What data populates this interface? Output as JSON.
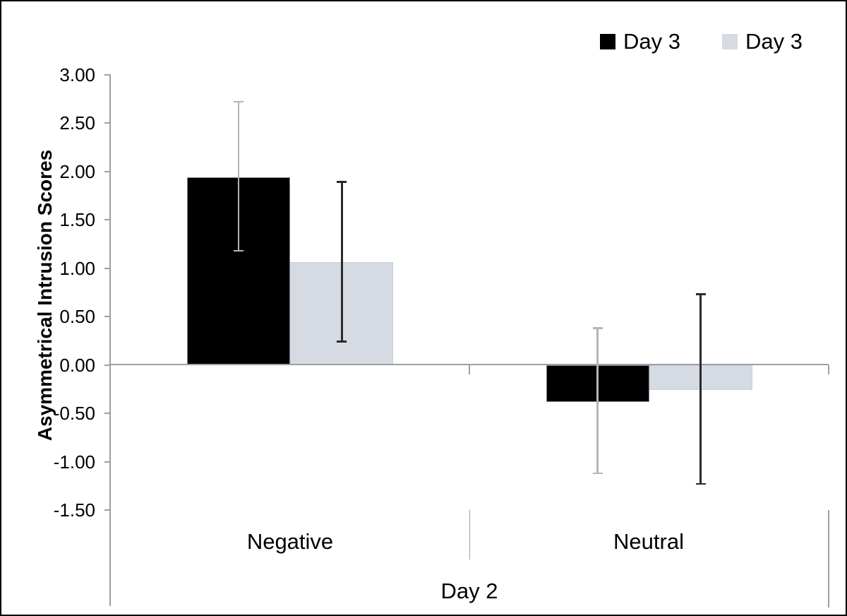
{
  "chart_data": {
    "type": "bar",
    "title": "",
    "ylabel": "Asymmetrical Intrusion Scores",
    "xlabel_group": "Day 2",
    "categories": [
      "Negative",
      "Neutral"
    ],
    "series": [
      {
        "name": "Day 3",
        "color": "#000000",
        "border_color": "#7f858c",
        "error_color": "#b5b5b5",
        "values": [
          1.94,
          -0.38
        ],
        "error_low": [
          1.18,
          -1.12
        ],
        "error_high": [
          2.72,
          0.38
        ]
      },
      {
        "name": "Day 3",
        "color": "#d6dbe3",
        "border_color": "#c9ced8",
        "error_color": "#2a2a2a",
        "values": [
          1.06,
          -0.26
        ],
        "error_low": [
          0.24,
          -1.23
        ],
        "error_high": [
          1.89,
          0.73
        ]
      }
    ],
    "y_ticks": [
      {
        "label": "3.00",
        "value": 3.0
      },
      {
        "label": "2.50",
        "value": 2.5
      },
      {
        "label": "2.00",
        "value": 2.0
      },
      {
        "label": "1.50",
        "value": 1.5
      },
      {
        "label": "1.00",
        "value": 1.0
      },
      {
        "label": "0.50",
        "value": 0.5
      },
      {
        "label": "0.00",
        "value": 0.0
      },
      {
        "label": "-0.50",
        "value": -0.5
      },
      {
        "label": "-1.00",
        "value": -1.0
      },
      {
        "label": "-1.50",
        "value": -1.5
      }
    ],
    "ylim": [
      -1.5,
      3.0
    ],
    "grid": false,
    "legend_position": "top-right",
    "axis_color": "#9aa0a6"
  }
}
